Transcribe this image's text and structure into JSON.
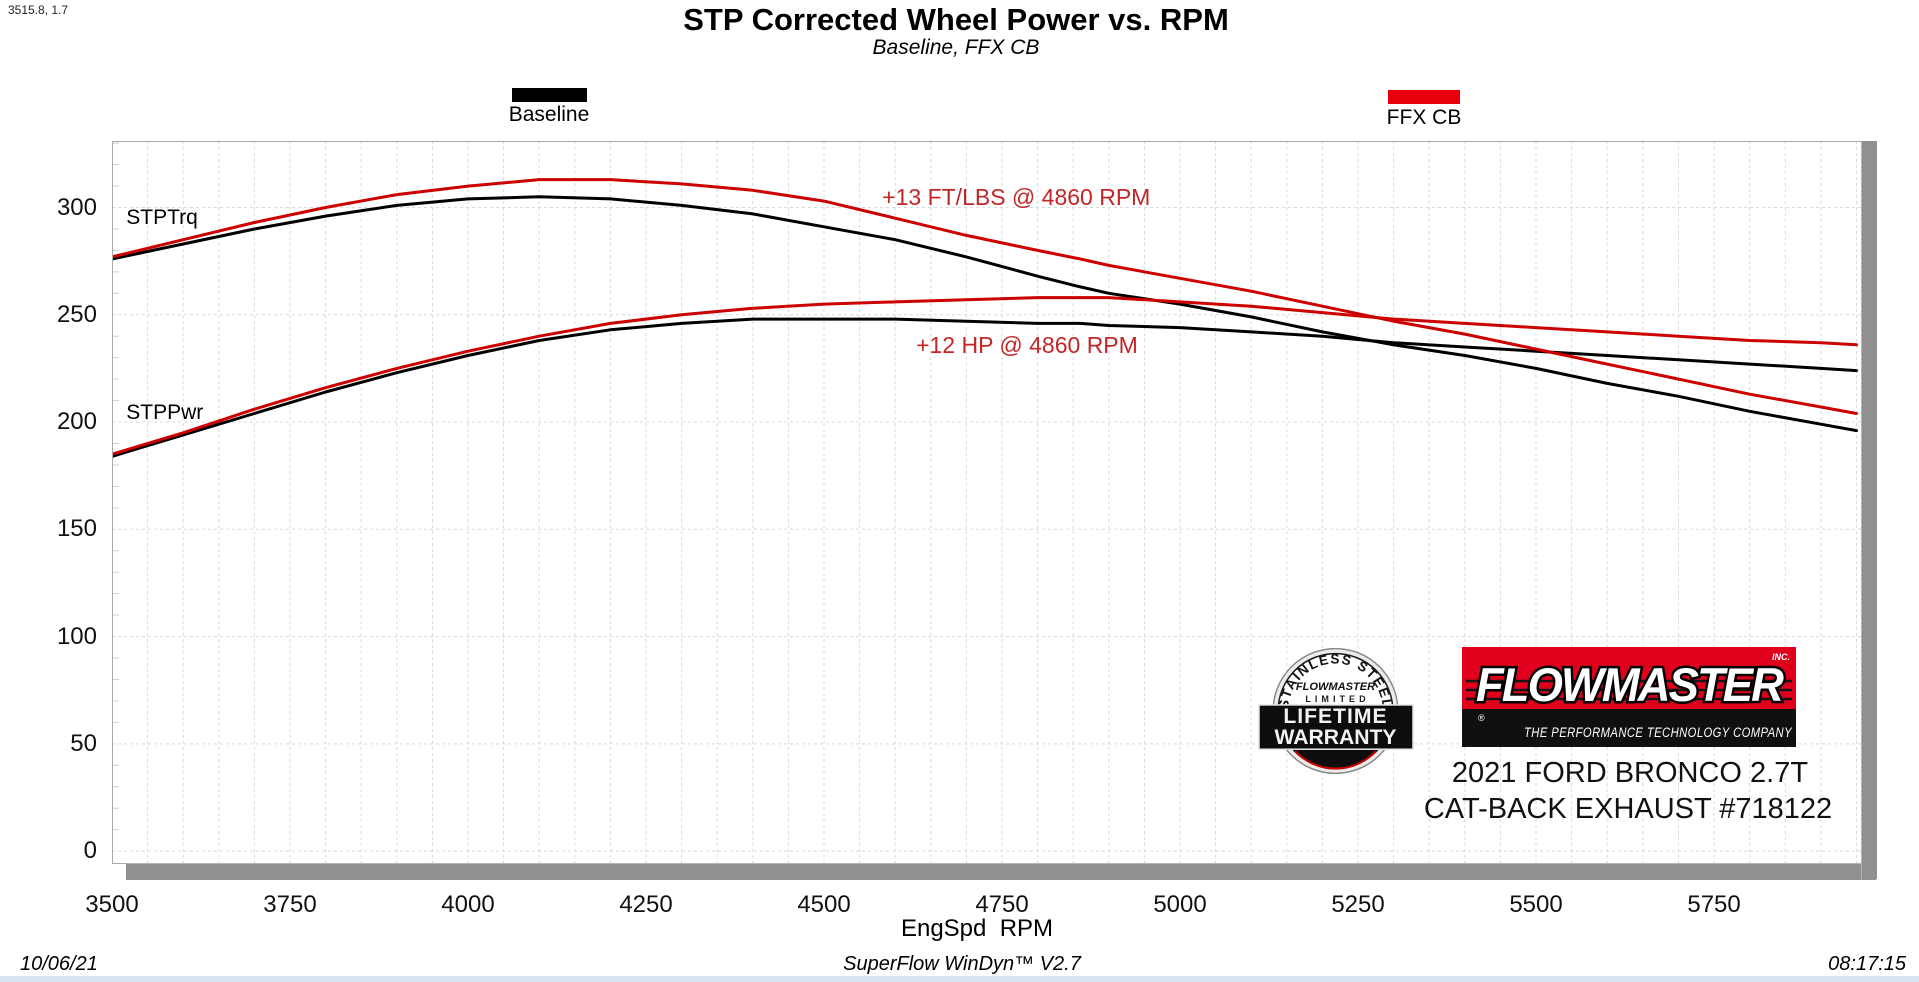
{
  "page": {
    "cursor_readout": "3515.8, 1.7",
    "title": "STP Corrected Wheel Power vs. RPM",
    "subtitle": "Baseline, FFX CB",
    "footer": {
      "date": "10/06/21",
      "app": "SuperFlow WinDyn™ V2.7",
      "time": "08:17:15"
    }
  },
  "legend": [
    {
      "label": "Baseline",
      "color": "#000000"
    },
    {
      "label": "FFX CB",
      "color": "#e8000d"
    }
  ],
  "branding": {
    "badge": {
      "arc_text": "STAINLESS STEEL",
      "brand": "FLOWMASTER",
      "limited": "LIMITED",
      "line1": "LIFETIME",
      "line2": "WARRANTY"
    },
    "logo": {
      "brand": "FLOWMASTER",
      "inc": "INC.",
      "registered": "®",
      "tagline": "THE PERFORMANCE TECHNOLOGY COMPANY",
      "red": "#e0001b"
    },
    "vehicle_line1": "2021 FORD BRONCO 2.7T",
    "vehicle_line2": "CAT-BACK EXHAUST #718122"
  },
  "chart_data": {
    "type": "line",
    "title": "STP Corrected Wheel Power vs. RPM",
    "subtitle": "Baseline, FFX CB",
    "xlabel": "EngSpd  RPM",
    "ylabel": "",
    "xlim": [
      3500,
      5962
    ],
    "ylim": [
      -6,
      331
    ],
    "x_ticks": [
      3500,
      3750,
      4000,
      4250,
      4500,
      4750,
      5000,
      5250,
      5500,
      5750
    ],
    "y_ticks": [
      0,
      50,
      100,
      150,
      200,
      250,
      300
    ],
    "grid": {
      "x_minor_step_rpm": 50,
      "y_major_step": 50,
      "y_axis_minor_tick_step": 10,
      "style": "dashed",
      "color": "#d9d9d9"
    },
    "legend_position": "above-plot",
    "x": [
      3500,
      3600,
      3700,
      3800,
      3900,
      4000,
      4100,
      4200,
      4300,
      4400,
      4500,
      4600,
      4700,
      4800,
      4860,
      4900,
      5000,
      5100,
      5200,
      5300,
      5400,
      5500,
      5600,
      5700,
      5800,
      5900,
      5950
    ],
    "series": [
      {
        "name": "STPTrq Baseline",
        "unit": "ft-lbs",
        "color": "#000000",
        "width": 3,
        "values": [
          276,
          283,
          290,
          296,
          301,
          304,
          305,
          304,
          301,
          297,
          291,
          285,
          277,
          268,
          263,
          260,
          255,
          249,
          242,
          236,
          231,
          225,
          218,
          212,
          205,
          199,
          196
        ]
      },
      {
        "name": "STPPwr Baseline",
        "unit": "hp",
        "color": "#000000",
        "width": 3,
        "values": [
          184,
          194,
          204,
          214,
          223,
          231,
          238,
          243,
          246,
          248,
          248,
          248,
          247,
          246,
          246,
          245,
          244,
          242,
          240,
          237,
          235,
          233,
          231,
          229,
          227,
          225,
          224
        ]
      },
      {
        "name": "STPTrq FFX CB",
        "unit": "ft-lbs",
        "color": "#cc0000",
        "width": 3,
        "values": [
          277,
          285,
          293,
          300,
          306,
          310,
          313,
          313,
          311,
          308,
          303,
          295,
          287,
          280,
          276,
          273,
          267,
          261,
          254,
          247,
          241,
          234,
          227,
          220,
          213,
          207,
          204
        ]
      },
      {
        "name": "STPPwr FFX CB",
        "unit": "hp",
        "color": "#cc0000",
        "width": 3,
        "values": [
          185,
          195,
          206,
          216,
          225,
          233,
          240,
          246,
          250,
          253,
          255,
          256,
          257,
          258,
          258,
          258,
          256,
          254,
          251,
          248,
          246,
          244,
          242,
          240,
          238,
          237,
          236
        ]
      }
    ],
    "curve_labels": [
      {
        "text": "STPTrq",
        "rpm": 3520,
        "value": 295
      },
      {
        "text": "STPPwr",
        "rpm": 3520,
        "value": 204
      }
    ],
    "annotations": [
      {
        "text": "+13 FT/LBS @ 4860 RPM",
        "rpm": 4770,
        "value": 305,
        "color": "#c22626"
      },
      {
        "text": "+12 HP @ 4860 RPM",
        "rpm": 4785,
        "value": 236,
        "color": "#c22626"
      }
    ]
  }
}
